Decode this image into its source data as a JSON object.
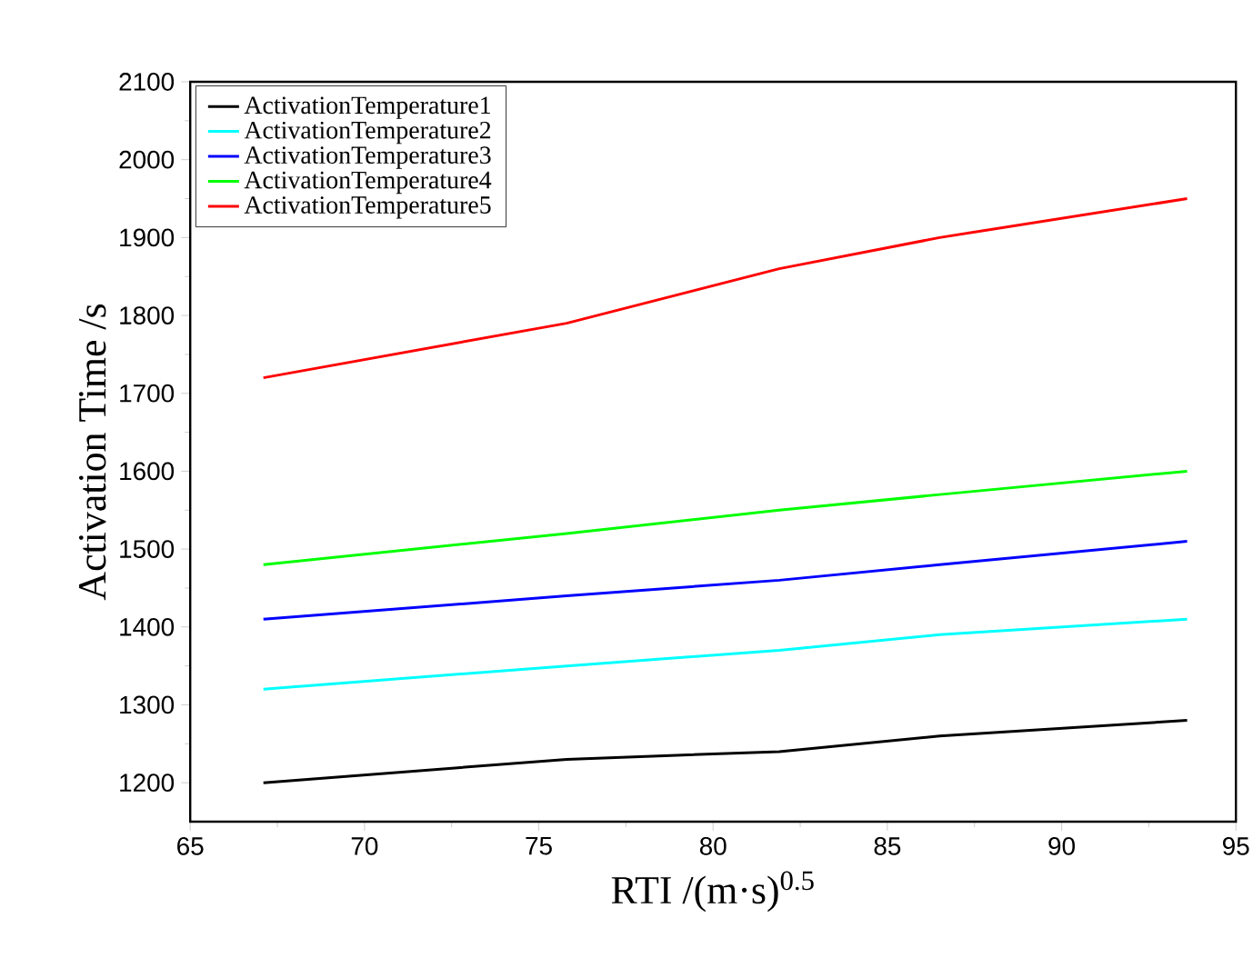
{
  "chart_data": {
    "type": "line",
    "xlabel": "RTI /(m·s)$^{0.5}$",
    "ylabel": "Activation Time /s",
    "x": [
      67.1,
      75.8,
      81.9,
      86.5,
      93.6
    ],
    "series": [
      {
        "name": "ActivationTemperature1",
        "color": "#000000",
        "values": [
          1200,
          1230,
          1240,
          1260,
          1280
        ]
      },
      {
        "name": "ActivationTemperature2",
        "color": "#00ffff",
        "values": [
          1320,
          1350,
          1370,
          1390,
          1410
        ]
      },
      {
        "name": "ActivationTemperature3",
        "color": "#0000ff",
        "values": [
          1410,
          1440,
          1460,
          1480,
          1510
        ]
      },
      {
        "name": "ActivationTemperature4",
        "color": "#00ff00",
        "values": [
          1480,
          1520,
          1550,
          1570,
          1600
        ]
      },
      {
        "name": "ActivationTemperature5",
        "color": "#ff0000",
        "values": [
          1720,
          1790,
          1860,
          1900,
          1950
        ]
      }
    ],
    "xlim": [
      65,
      95
    ],
    "ylim": [
      1150,
      2100
    ],
    "xticks": [
      65,
      70,
      75,
      80,
      85,
      90,
      95
    ],
    "yticks": [
      1200,
      1300,
      1400,
      1500,
      1600,
      1700,
      1800,
      1900,
      2000,
      2100
    ],
    "legend": "top left",
    "grid": false,
    "marker": "none",
    "line_style": "solid"
  }
}
